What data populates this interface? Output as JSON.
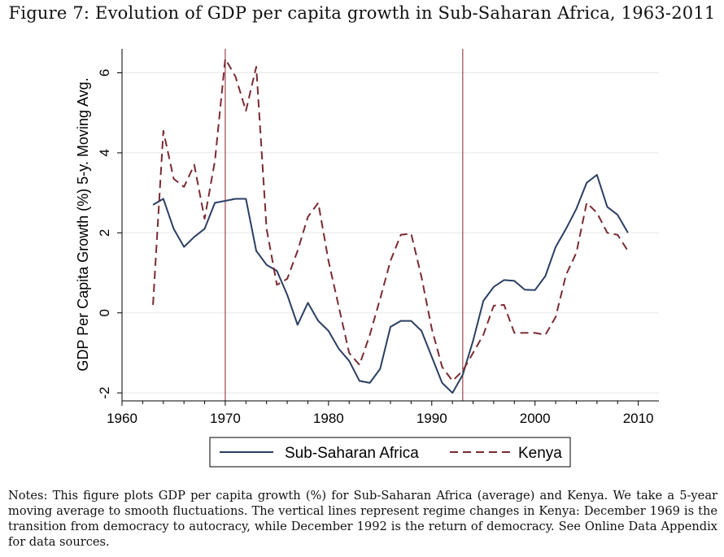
{
  "figure_title": "Figure 7: Evolution of GDP per capita growth in Sub-Saharan Africa, 1963-2011",
  "notes": "Notes: This figure plots GDP per capita growth (%) for Sub-Saharan Africa (average) and Kenya. We take a 5-year moving average to smooth fluctuations. The vertical lines represent regime changes in Kenya: December 1969 is the transition from democracy to autocracy, while December 1992 is the return of democracy. See Online Data Appendix for data sources.",
  "colors": {
    "ssa": "#2b3f63",
    "kenya": "#7a2b33",
    "vline": "#8b1f2b",
    "grid": "#e8e8e8"
  },
  "chart_data": {
    "type": "line",
    "title": "Figure 7: Evolution of GDP per capita growth in Sub-Saharan Africa, 1963-2011",
    "xlabel": "",
    "ylabel": "GDP Per Capita Growth (%) 5-y. Moving Avg.",
    "xlim": [
      1960,
      2012
    ],
    "ylim": [
      -2.2,
      6.6
    ],
    "xticks": [
      1960,
      1970,
      1980,
      1990,
      2000,
      2010
    ],
    "yticks": [
      -2,
      0,
      2,
      4,
      6
    ],
    "grid": true,
    "legend_position": "bottom",
    "vertical_lines": [
      1970,
      1993
    ],
    "x": [
      1963,
      1964,
      1965,
      1966,
      1967,
      1968,
      1969,
      1970,
      1971,
      1972,
      1973,
      1974,
      1975,
      1976,
      1977,
      1978,
      1979,
      1980,
      1981,
      1982,
      1983,
      1984,
      1985,
      1986,
      1987,
      1988,
      1989,
      1990,
      1991,
      1992,
      1993,
      1994,
      1995,
      1996,
      1997,
      1998,
      1999,
      2000,
      2001,
      2002,
      2003,
      2004,
      2005,
      2006,
      2007,
      2008,
      2009
    ],
    "series": [
      {
        "name": "Sub-Saharan Africa",
        "style": "solid",
        "values": [
          2.7,
          2.85,
          2.1,
          1.65,
          1.9,
          2.1,
          2.75,
          2.8,
          2.85,
          2.85,
          1.55,
          1.2,
          1.05,
          0.45,
          -0.3,
          0.25,
          -0.2,
          -0.45,
          -0.9,
          -1.2,
          -1.7,
          -1.75,
          -1.4,
          -0.35,
          -0.2,
          -0.2,
          -0.45,
          -1.1,
          -1.75,
          -2.0,
          -1.55,
          -0.7,
          0.3,
          0.65,
          0.82,
          0.8,
          0.58,
          0.57,
          0.92,
          1.65,
          2.1,
          2.6,
          3.25,
          3.45,
          2.65,
          2.45,
          2.0
        ]
      },
      {
        "name": "Kenya",
        "style": "dashed",
        "values": [
          0.2,
          4.55,
          3.35,
          3.15,
          3.7,
          2.35,
          3.8,
          6.35,
          5.9,
          5.05,
          6.15,
          2.1,
          0.7,
          0.85,
          1.55,
          2.4,
          2.75,
          1.3,
          0.15,
          -1.0,
          -1.3,
          -0.55,
          0.35,
          1.3,
          1.95,
          1.98,
          0.9,
          -0.4,
          -1.35,
          -1.7,
          -1.45,
          -1.0,
          -0.55,
          0.18,
          0.2,
          -0.5,
          -0.5,
          -0.5,
          -0.55,
          -0.1,
          0.95,
          1.5,
          2.75,
          2.5,
          2.0,
          1.95,
          1.55
        ]
      }
    ]
  }
}
